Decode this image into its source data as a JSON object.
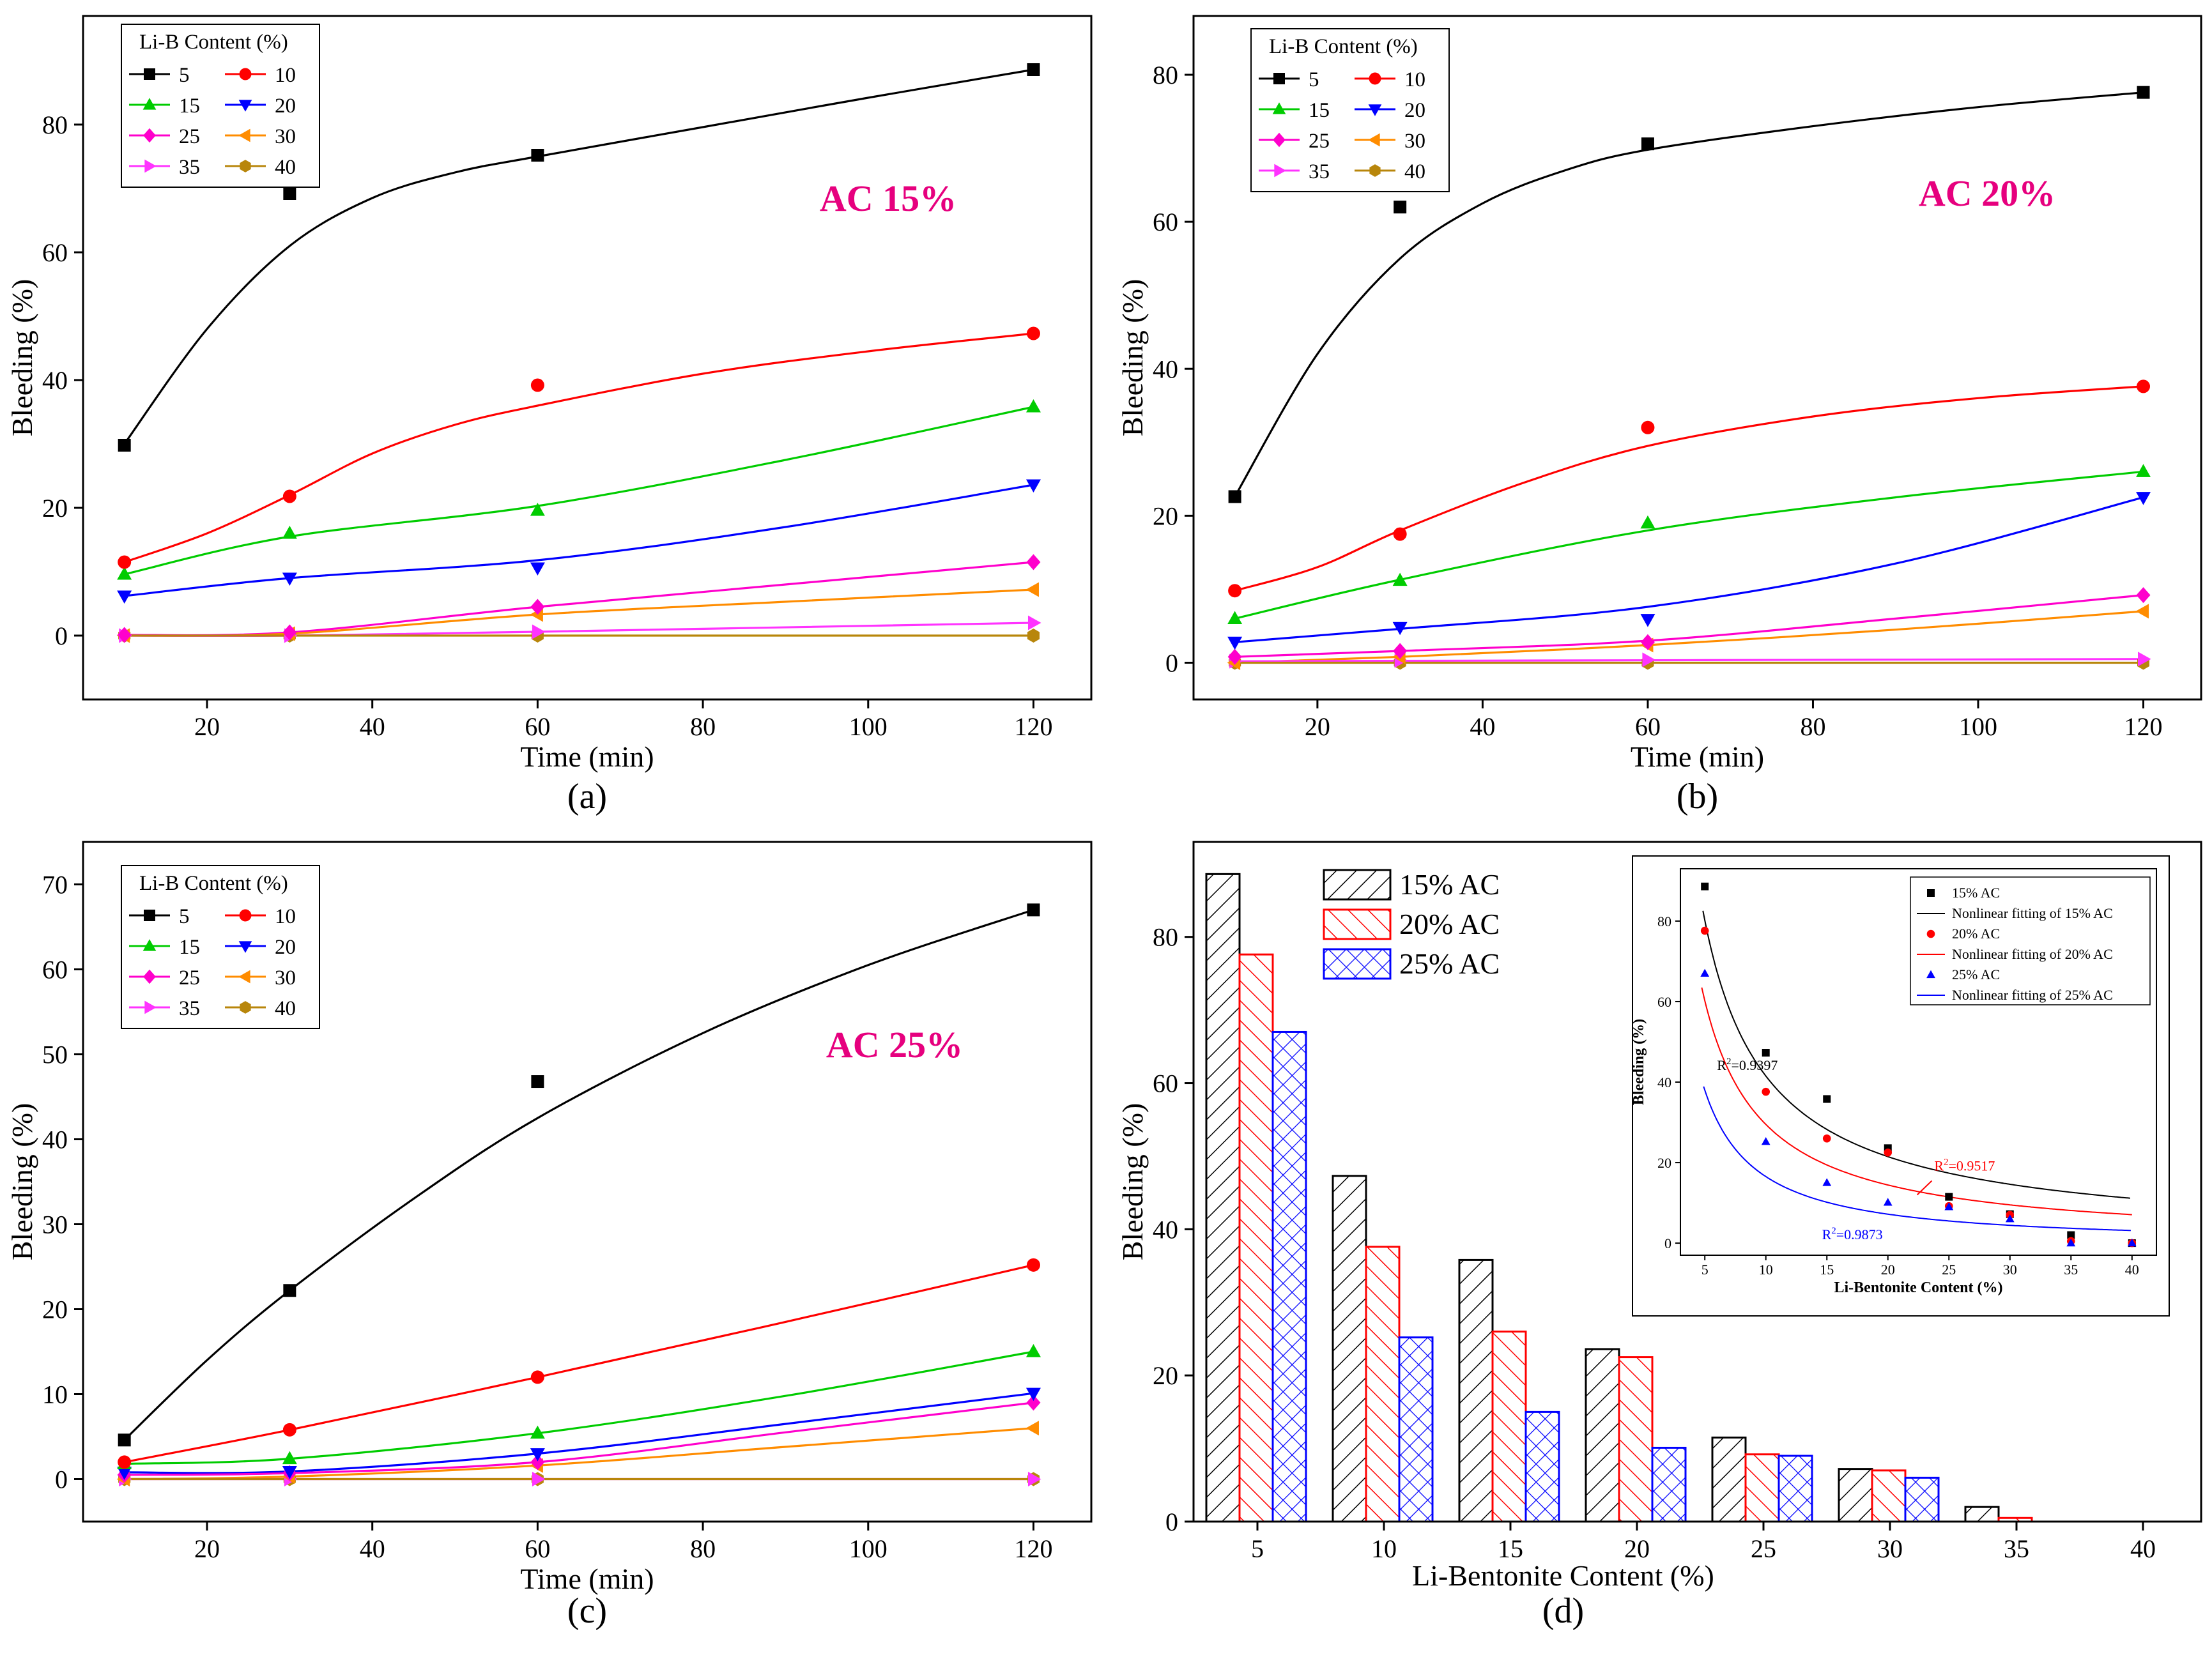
{
  "legend_title": "Li-B Content (%)",
  "series_colors": {
    "5": "#000000",
    "10": "#ff0000",
    "15": "#00cc00",
    "20": "#0000ff",
    "25": "#ff00cc",
    "30": "#ff8c00",
    "35": "#ff33ff",
    "40": "#b8860b"
  },
  "series_markers": {
    "5": "square",
    "10": "circle",
    "15": "triangle-up",
    "20": "triangle-down",
    "25": "diamond",
    "30": "triangle-left",
    "35": "triangle-right",
    "40": "hexagon"
  },
  "ac_color": "#e6007e",
  "chart_data": [
    {
      "panel": "(a)",
      "type": "line",
      "annotation": "AC 15%",
      "xlabel": "Time (min)",
      "ylabel": "Bleeding (%)",
      "xlim": [
        5,
        127
      ],
      "ylim": [
        -10,
        97
      ],
      "xticks": [
        20,
        40,
        60,
        80,
        100,
        120
      ],
      "yticks": [
        0,
        20,
        40,
        60,
        80
      ],
      "x": [
        10,
        30,
        60,
        120
      ],
      "series": [
        {
          "name": "5",
          "values": [
            29.8,
            69.2,
            75.2,
            88.6
          ]
        },
        {
          "name": "10",
          "values": [
            11.5,
            21.8,
            39.2,
            47.3
          ]
        },
        {
          "name": "15",
          "values": [
            9.6,
            16.0,
            19.6,
            35.8
          ]
        },
        {
          "name": "20",
          "values": [
            6.2,
            9.0,
            10.6,
            23.6
          ]
        },
        {
          "name": "25",
          "values": [
            0.1,
            0.5,
            4.5,
            11.5
          ]
        },
        {
          "name": "30",
          "values": [
            0.0,
            0.3,
            3.3,
            7.2
          ]
        },
        {
          "name": "35",
          "values": [
            0.0,
            0.0,
            0.6,
            2.0
          ]
        },
        {
          "name": "40",
          "values": [
            0.0,
            0.0,
            0.0,
            0.0
          ]
        }
      ],
      "fit_curves": {
        "5": [
          [
            10,
            30.0
          ],
          [
            20,
            48.0
          ],
          [
            30,
            61.0
          ],
          [
            40,
            68.5
          ],
          [
            50,
            72.5
          ],
          [
            60,
            75.0
          ],
          [
            80,
            79.6
          ],
          [
            100,
            84.2
          ],
          [
            120,
            88.6
          ]
        ],
        "10": [
          [
            10,
            11.5
          ],
          [
            20,
            16.0
          ],
          [
            30,
            22.0
          ],
          [
            40,
            28.5
          ],
          [
            50,
            33.0
          ],
          [
            60,
            36.0
          ],
          [
            80,
            41.0
          ],
          [
            100,
            44.5
          ],
          [
            120,
            47.3
          ]
        ],
        "15": [
          [
            10,
            9.6
          ],
          [
            30,
            15.5
          ],
          [
            60,
            20.3
          ],
          [
            90,
            27.5
          ],
          [
            120,
            35.8
          ]
        ],
        "20": [
          [
            10,
            6.2
          ],
          [
            30,
            9.0
          ],
          [
            60,
            11.8
          ],
          [
            90,
            17.0
          ],
          [
            120,
            23.6
          ]
        ],
        "25": [
          [
            10,
            0.1
          ],
          [
            30,
            0.5
          ],
          [
            60,
            4.5
          ],
          [
            90,
            8.0
          ],
          [
            120,
            11.5
          ]
        ],
        "30": [
          [
            10,
            0.0
          ],
          [
            30,
            0.3
          ],
          [
            60,
            3.3
          ],
          [
            90,
            5.3
          ],
          [
            120,
            7.2
          ]
        ],
        "35": [
          [
            10,
            0.0
          ],
          [
            30,
            0.0
          ],
          [
            60,
            0.6
          ],
          [
            120,
            2.0
          ]
        ],
        "40": [
          [
            10,
            0.0
          ],
          [
            120,
            0.0
          ]
        ]
      }
    },
    {
      "panel": "(b)",
      "type": "line",
      "annotation": "AC 20%",
      "xlabel": "Time (min)",
      "ylabel": "Bleeding (%)",
      "xlim": [
        5,
        127
      ],
      "ylim": [
        -5,
        88
      ],
      "xticks": [
        20,
        40,
        60,
        80,
        100,
        120
      ],
      "yticks": [
        0,
        20,
        40,
        60,
        80
      ],
      "x": [
        10,
        30,
        60,
        120
      ],
      "series": [
        {
          "name": "5",
          "values": [
            22.6,
            62.0,
            70.6,
            77.6
          ]
        },
        {
          "name": "10",
          "values": [
            9.8,
            17.5,
            32.0,
            37.6
          ]
        },
        {
          "name": "15",
          "values": [
            6.0,
            11.2,
            19.0,
            26.0
          ]
        },
        {
          "name": "20",
          "values": [
            2.8,
            4.8,
            5.9,
            22.5
          ]
        },
        {
          "name": "25",
          "values": [
            0.8,
            1.6,
            2.8,
            9.2
          ]
        },
        {
          "name": "30",
          "values": [
            0.0,
            0.8,
            2.4,
            7.0
          ]
        },
        {
          "name": "35",
          "values": [
            0.2,
            0.3,
            0.4,
            0.5
          ]
        },
        {
          "name": "40",
          "values": [
            0.0,
            0.0,
            0.0,
            0.0
          ]
        }
      ],
      "fit_curves": {
        "5": [
          [
            10,
            22.6
          ],
          [
            20,
            42.0
          ],
          [
            30,
            55.0
          ],
          [
            40,
            62.5
          ],
          [
            50,
            67.0
          ],
          [
            60,
            69.8
          ],
          [
            80,
            73.0
          ],
          [
            100,
            75.6
          ],
          [
            120,
            77.6
          ]
        ],
        "10": [
          [
            10,
            9.8
          ],
          [
            20,
            13.0
          ],
          [
            30,
            18.0
          ],
          [
            45,
            24.5
          ],
          [
            60,
            29.5
          ],
          [
            80,
            33.5
          ],
          [
            100,
            36.0
          ],
          [
            120,
            37.6
          ]
        ],
        "15": [
          [
            10,
            6.0
          ],
          [
            30,
            11.3
          ],
          [
            60,
            18.0
          ],
          [
            90,
            22.5
          ],
          [
            120,
            26.0
          ]
        ],
        "20": [
          [
            10,
            2.8
          ],
          [
            30,
            4.6
          ],
          [
            60,
            7.6
          ],
          [
            90,
            13.5
          ],
          [
            120,
            22.5
          ]
        ],
        "25": [
          [
            10,
            0.8
          ],
          [
            30,
            1.6
          ],
          [
            60,
            3.0
          ],
          [
            90,
            6.0
          ],
          [
            120,
            9.2
          ]
        ],
        "30": [
          [
            10,
            0.0
          ],
          [
            30,
            0.8
          ],
          [
            60,
            2.4
          ],
          [
            90,
            4.5
          ],
          [
            120,
            7.0
          ]
        ],
        "35": [
          [
            10,
            0.2
          ],
          [
            120,
            0.5
          ]
        ],
        "40": [
          [
            10,
            0.0
          ],
          [
            120,
            0.0
          ]
        ]
      }
    },
    {
      "panel": "(c)",
      "type": "line",
      "annotation": "AC 25%",
      "xlabel": "Time (min)",
      "ylabel": "Bleeding (%)",
      "xlim": [
        5,
        127
      ],
      "ylim": [
        -5,
        75
      ],
      "xticks": [
        20,
        40,
        60,
        80,
        100,
        120
      ],
      "yticks": [
        0,
        10,
        20,
        30,
        40,
        50,
        60,
        70
      ],
      "x": [
        10,
        30,
        60,
        120
      ],
      "series": [
        {
          "name": "5",
          "values": [
            4.6,
            22.2,
            46.8,
            67.0
          ]
        },
        {
          "name": "10",
          "values": [
            2.0,
            5.8,
            12.0,
            25.2
          ]
        },
        {
          "name": "15",
          "values": [
            1.8,
            2.4,
            5.4,
            15.0
          ]
        },
        {
          "name": "20",
          "values": [
            0.8,
            0.9,
            3.0,
            10.1
          ]
        },
        {
          "name": "25",
          "values": [
            0.5,
            0.7,
            2.0,
            9.0
          ]
        },
        {
          "name": "30",
          "values": [
            0.0,
            0.3,
            1.6,
            6.0
          ]
        },
        {
          "name": "35",
          "values": [
            0.0,
            0.0,
            0.0,
            0.0
          ]
        },
        {
          "name": "40",
          "values": [
            0.0,
            0.0,
            0.0,
            0.0
          ]
        }
      ],
      "fit_curves": {
        "5": [
          [
            10,
            4.6
          ],
          [
            20,
            14.0
          ],
          [
            30,
            22.2
          ],
          [
            45,
            33.0
          ],
          [
            60,
            42.5
          ],
          [
            80,
            52.5
          ],
          [
            100,
            60.5
          ],
          [
            120,
            67.0
          ]
        ],
        "10": [
          [
            10,
            2.0
          ],
          [
            30,
            5.8
          ],
          [
            60,
            12.0
          ],
          [
            90,
            18.5
          ],
          [
            120,
            25.2
          ]
        ],
        "15": [
          [
            10,
            1.8
          ],
          [
            30,
            2.4
          ],
          [
            60,
            5.4
          ],
          [
            90,
            9.8
          ],
          [
            120,
            15.0
          ]
        ],
        "20": [
          [
            10,
            0.8
          ],
          [
            30,
            0.9
          ],
          [
            60,
            3.0
          ],
          [
            90,
            6.5
          ],
          [
            120,
            10.1
          ]
        ],
        "25": [
          [
            10,
            0.5
          ],
          [
            30,
            0.7
          ],
          [
            60,
            2.0
          ],
          [
            90,
            5.5
          ],
          [
            120,
            9.0
          ]
        ],
        "30": [
          [
            10,
            0.0
          ],
          [
            30,
            0.3
          ],
          [
            60,
            1.6
          ],
          [
            90,
            3.8
          ],
          [
            120,
            6.0
          ]
        ],
        "35": [
          [
            10,
            0.0
          ],
          [
            120,
            0.0
          ]
        ],
        "40": [
          [
            10,
            0.0
          ],
          [
            120,
            0.0
          ]
        ]
      }
    },
    {
      "panel": "(d)",
      "type": "bar",
      "xlabel": "Li-Bentonite Content (%)",
      "ylabel": "Bleeding (%)",
      "ylim": [
        0,
        93
      ],
      "yticks": [
        0,
        20,
        40,
        60,
        80
      ],
      "categories": [
        "5",
        "10",
        "15",
        "20",
        "25",
        "30",
        "35",
        "40"
      ],
      "series": [
        {
          "name": "15% AC",
          "color": "#000000",
          "pattern": "diag-left",
          "values": [
            88.6,
            47.3,
            35.8,
            23.6,
            11.5,
            7.2,
            2.0,
            0.0
          ]
        },
        {
          "name": "20% AC",
          "color": "#ff0000",
          "pattern": "diag-right",
          "values": [
            77.6,
            37.6,
            26.0,
            22.5,
            9.2,
            7.0,
            0.5,
            0.0
          ]
        },
        {
          "name": "25% AC",
          "color": "#0000ff",
          "pattern": "cross",
          "values": [
            67.0,
            25.2,
            15.0,
            10.1,
            9.0,
            6.0,
            0.0,
            0.0
          ]
        }
      ],
      "inset": {
        "type": "scatter",
        "xlabel": "Li-Bentonite Content (%)",
        "ylabel": "Bleeding (%)",
        "xlim": [
          3,
          42
        ],
        "ylim": [
          -3,
          93
        ],
        "xticks": [
          5,
          10,
          15,
          20,
          25,
          30,
          35,
          40
        ],
        "yticks": [
          0,
          20,
          40,
          60,
          80
        ],
        "x": [
          5,
          10,
          15,
          20,
          25,
          30,
          35,
          40
        ],
        "legend": [
          "15% AC",
          "Nonlinear fitting of 15% AC",
          "20% AC",
          "Nonlinear fitting of 20% AC",
          "25% AC",
          "Nonlinear fitting of 25% AC"
        ],
        "r2_labels": [
          {
            "prefix": "R",
            "sup": "2",
            "value": "=0.9397",
            "color": "#000000",
            "at": [
              6,
              43
            ]
          },
          {
            "prefix": "R",
            "sup": "2",
            "value": "=0.9517",
            "color": "#ff0000",
            "at": [
              23.8,
              18
            ]
          },
          {
            "prefix": "R",
            "sup": "2",
            "value": "=0.9873",
            "color": "#0000ff",
            "at": [
              14.6,
              1
            ]
          }
        ],
        "series": [
          {
            "name": "15% AC",
            "color": "#000000",
            "marker": "square",
            "values": [
              88.6,
              47.3,
              35.8,
              23.6,
              11.5,
              7.2,
              2.0,
              0.0
            ]
          },
          {
            "name": "20% AC",
            "color": "#ff0000",
            "marker": "circle",
            "values": [
              77.6,
              37.6,
              26.0,
              22.5,
              9.2,
              7.0,
              0.5,
              0.0
            ]
          },
          {
            "name": "25% AC",
            "color": "#0000ff",
            "marker": "triangle-up",
            "values": [
              67.0,
              25.2,
              15.0,
              10.1,
              9.0,
              6.0,
              0.0,
              0.0
            ]
          }
        ],
        "fits": [
          {
            "name": "Nonlinear fitting of 15% AC",
            "color": "#000000",
            "a": 370,
            "b": -0.95,
            "x0": 4.85
          },
          {
            "name": "Nonlinear fitting of 20% AC",
            "color": "#ff0000",
            "a": 316,
            "b": -1.03,
            "x0": 4.75
          },
          {
            "name": "Nonlinear fitting of 25% AC",
            "color": "#0000ff",
            "a": 262,
            "b": -1.2,
            "x0": 4.9
          }
        ]
      }
    }
  ]
}
